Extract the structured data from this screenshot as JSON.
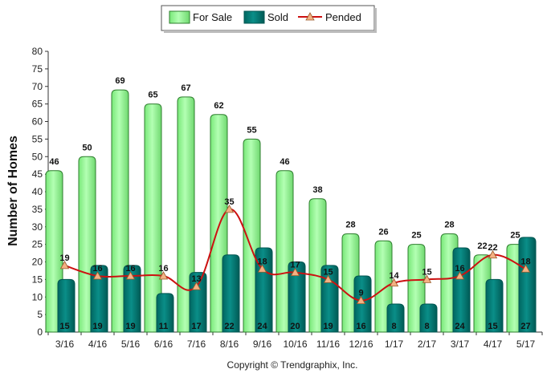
{
  "chart_data": {
    "type": "bar",
    "ylabel": "Number of Homes",
    "ylim": [
      0,
      80
    ],
    "yticks": [
      0,
      5,
      10,
      15,
      20,
      25,
      30,
      35,
      40,
      45,
      50,
      55,
      60,
      65,
      70,
      75,
      80
    ],
    "categories": [
      "3/16",
      "4/16",
      "5/16",
      "6/16",
      "7/16",
      "8/16",
      "9/16",
      "10/16",
      "11/16",
      "12/16",
      "1/17",
      "2/17",
      "3/17",
      "4/17",
      "5/17"
    ],
    "series": [
      {
        "name": "For Sale",
        "type": "bar",
        "color": "#99ff99",
        "stroke": "#2e7d2e",
        "values": [
          46,
          50,
          69,
          65,
          67,
          62,
          55,
          46,
          38,
          28,
          26,
          25,
          28,
          22,
          25
        ]
      },
      {
        "name": "Sold",
        "type": "bar",
        "color": "#007a75",
        "stroke": "#005550",
        "values": [
          15,
          19,
          19,
          11,
          17,
          22,
          24,
          20,
          19,
          16,
          8,
          8,
          24,
          15,
          27
        ]
      },
      {
        "name": "Pended",
        "type": "line",
        "color": "#cc1111",
        "marker_color": "#f4b183",
        "values": [
          19,
          16,
          16,
          16,
          13,
          35,
          18,
          17,
          15,
          9,
          14,
          15,
          16,
          22,
          18
        ]
      }
    ],
    "legend_position": "top-center",
    "grid": false,
    "copyright": "Copyright © Trendgraphix, Inc."
  }
}
